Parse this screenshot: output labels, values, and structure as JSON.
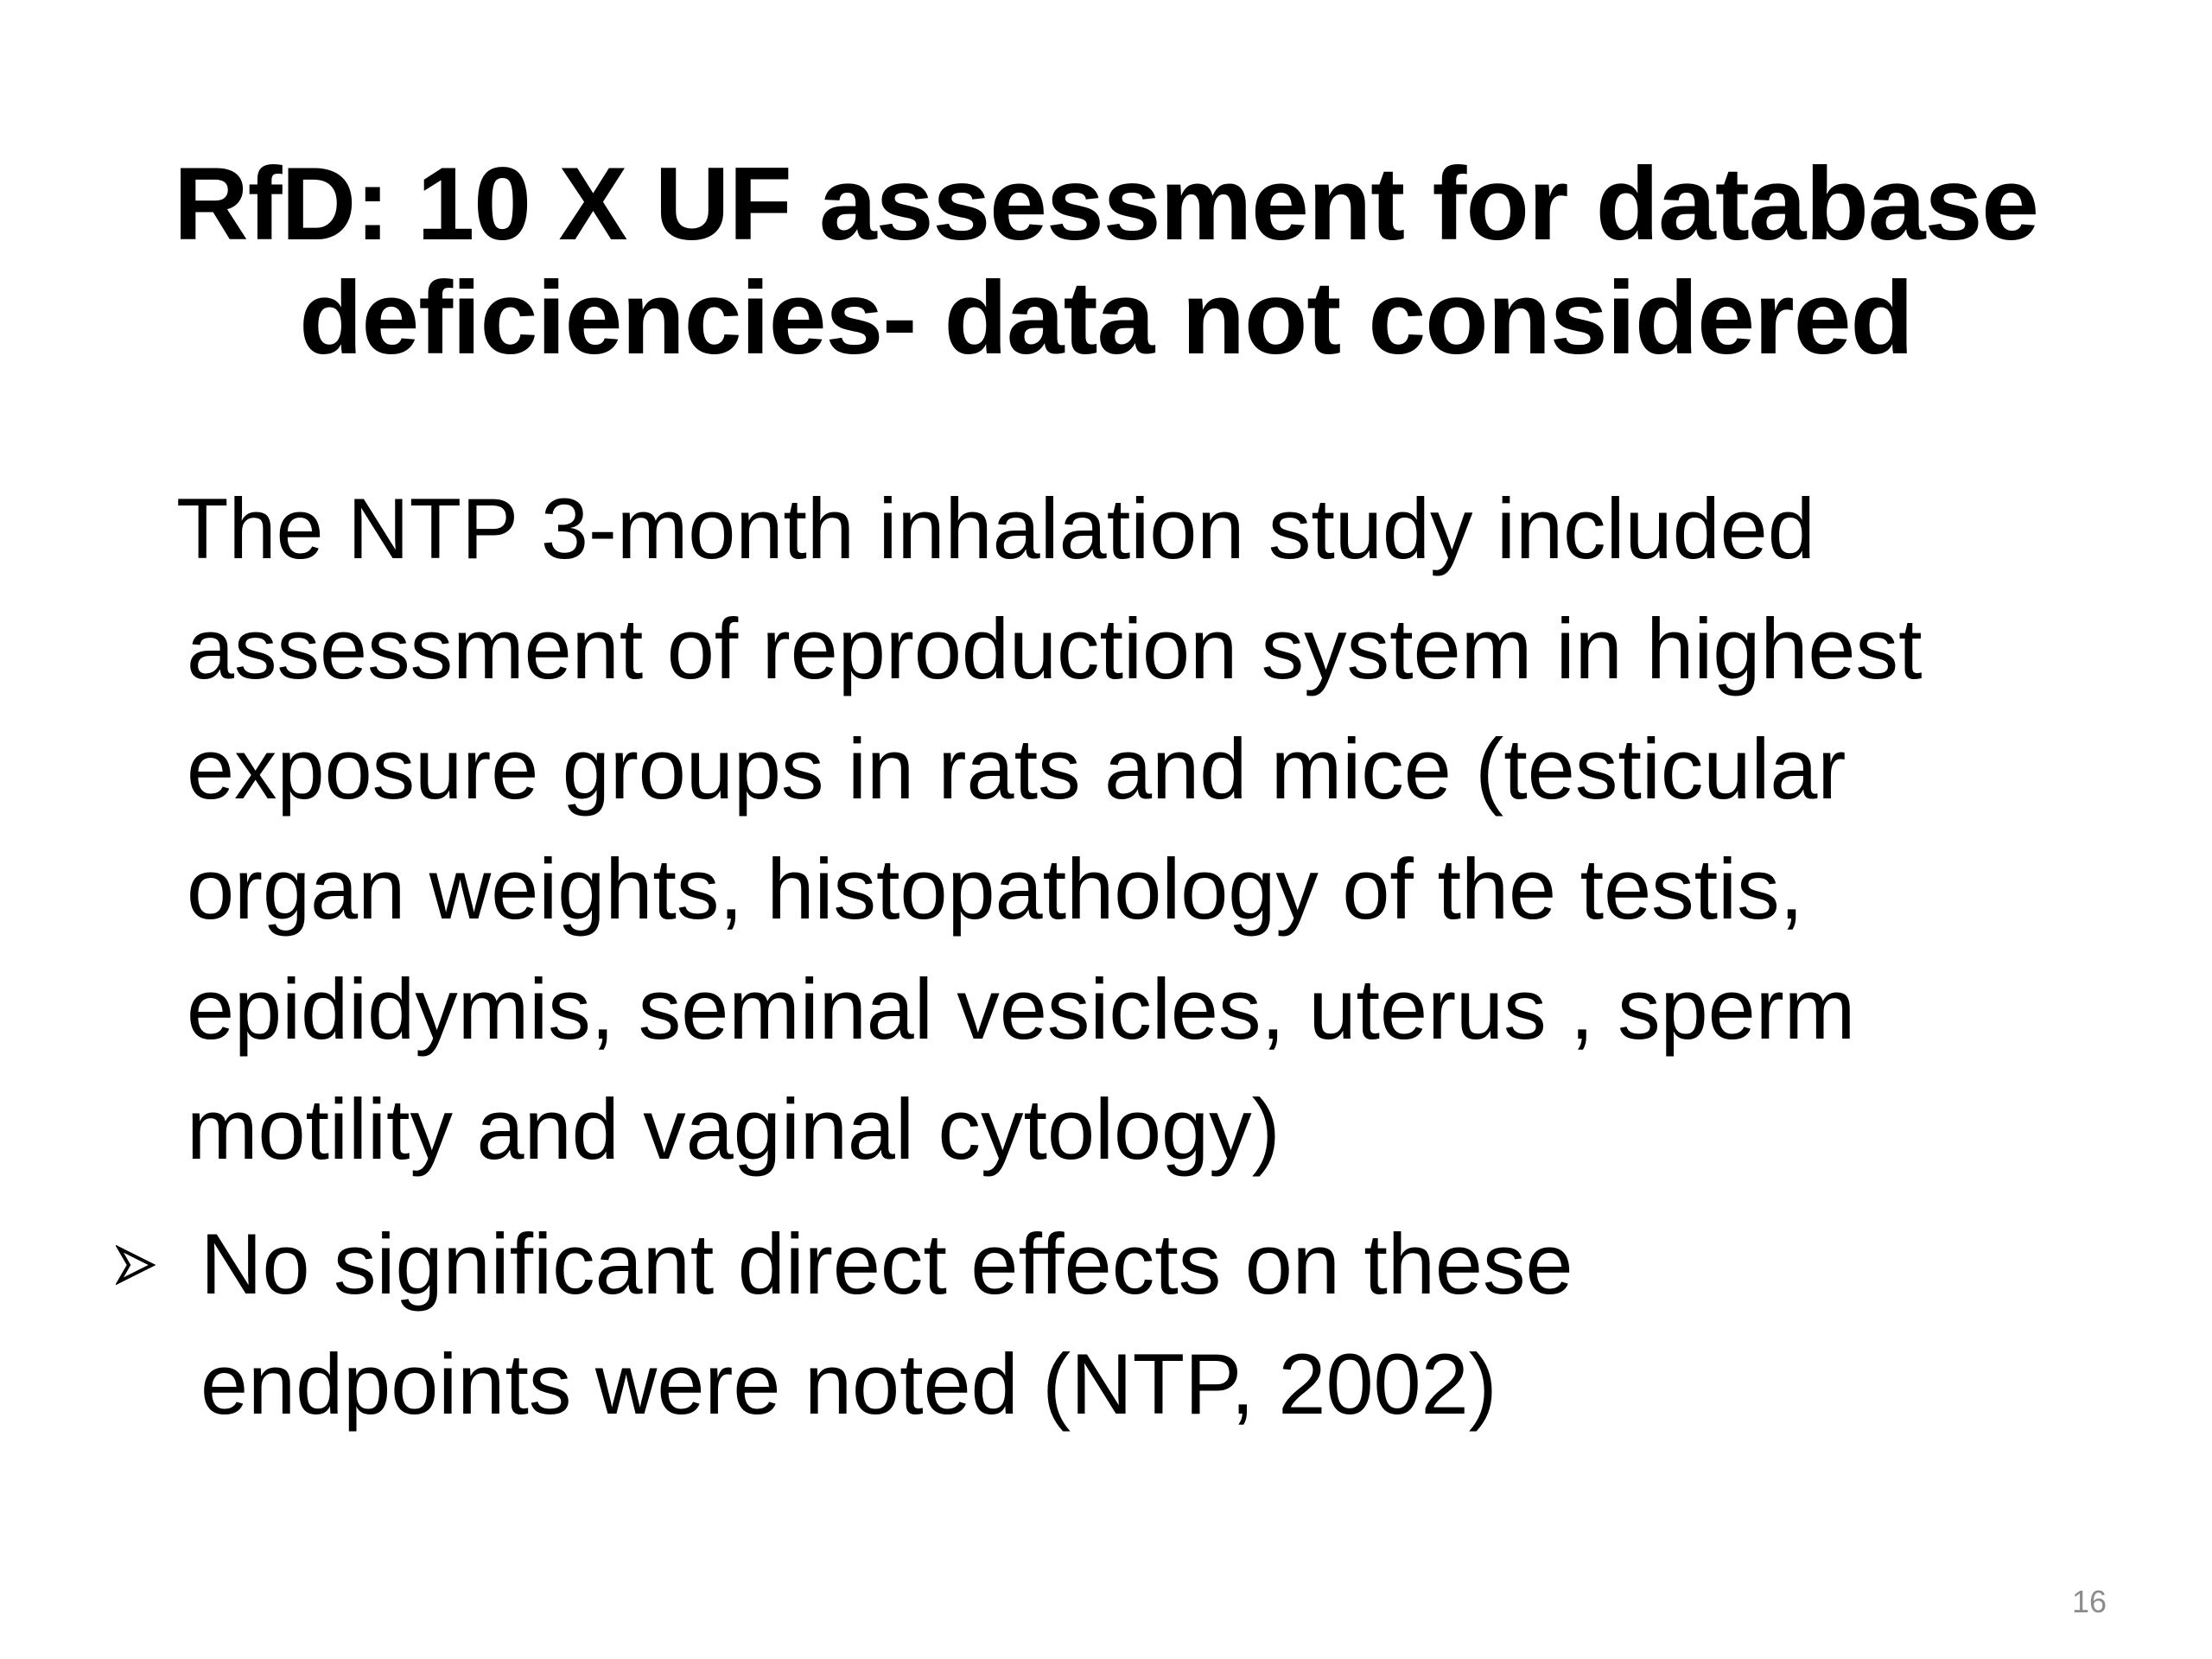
{
  "slide": {
    "title_lines": [
      "RfD: 10 X UF assessment for database",
      "deficiencies- data not considered"
    ],
    "paragraph_lines": [
      "The NTP 3-month inhalation study included",
      "assessment of reproduction system in highest",
      "exposure groups in rats and mice  (testicular",
      "organ weights, histopathology of the testis,",
      "epididymis, seminal vesicles, uterus , sperm",
      "motility and vaginal cytology)"
    ],
    "bullet": {
      "icon": "arrowhead-bullet-icon",
      "lines": [
        "No significant direct effects on these",
        "endpoints were noted  (NTP, 2002)"
      ]
    },
    "page_number": "16",
    "page_number_color": "#8c8c8c"
  }
}
